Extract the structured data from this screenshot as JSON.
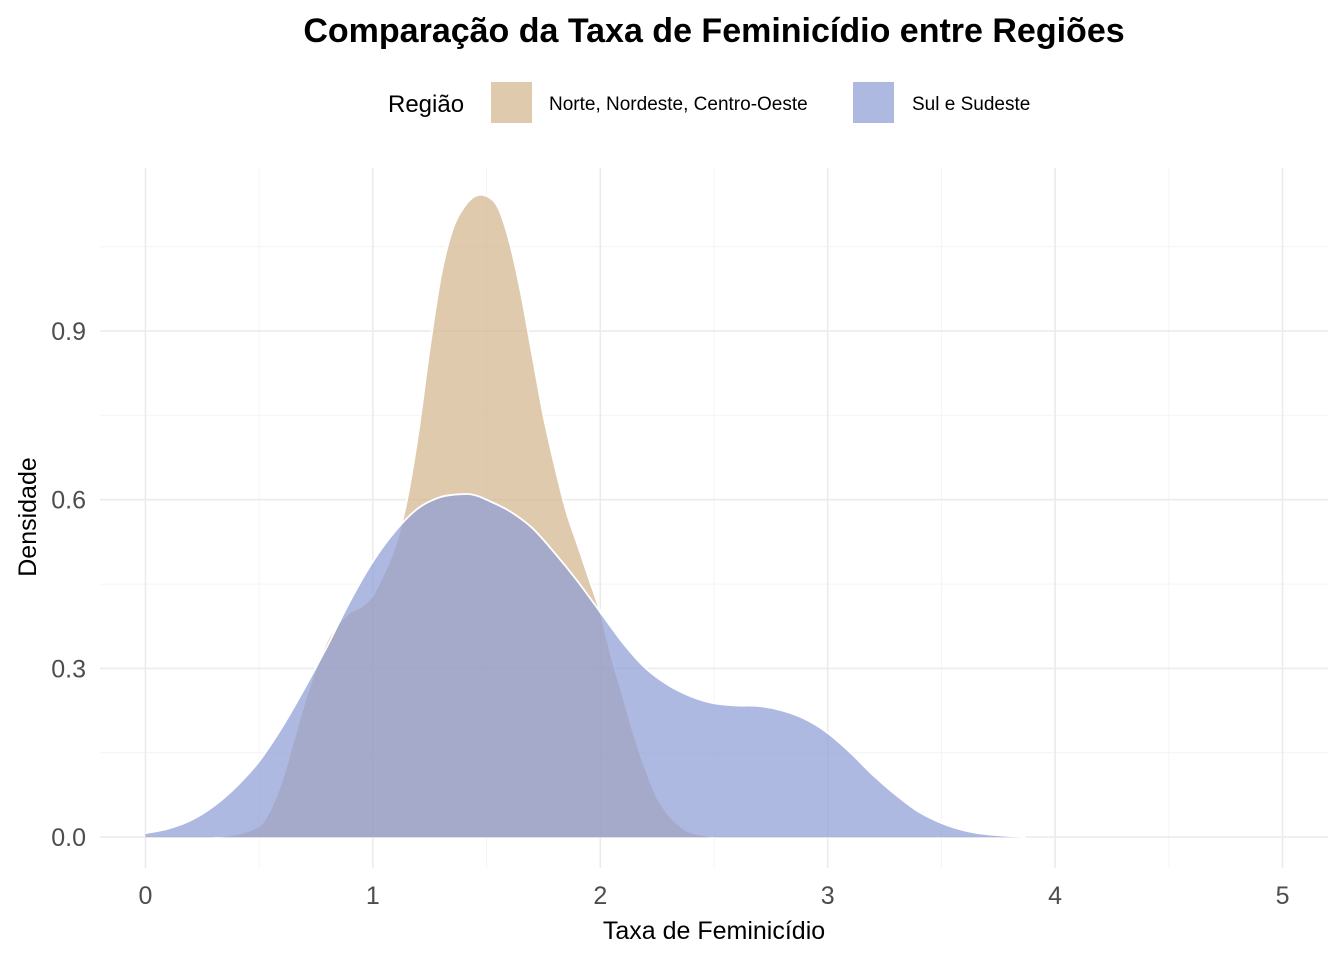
{
  "chart_data": {
    "type": "area",
    "subtype": "density",
    "title": "Comparação da Taxa de Feminicídio entre Regiões",
    "xlabel": "Taxa de Feminicídio",
    "ylabel": "Densidade",
    "xlim": [
      -0.2,
      5.2
    ],
    "ylim": [
      -0.055,
      1.19
    ],
    "x_ticks": [
      0,
      1,
      2,
      3,
      4,
      5
    ],
    "x_tick_labels": [
      "0",
      "1",
      "2",
      "3",
      "4",
      "5"
    ],
    "y_ticks": [
      0.0,
      0.3,
      0.6,
      0.9
    ],
    "y_tick_labels": [
      "0.0",
      "0.3",
      "0.6",
      "0.9"
    ],
    "grid": true,
    "legend": {
      "title": "Região",
      "position": "top"
    },
    "series": [
      {
        "name": "Norte, Nordeste, Centro-Oeste",
        "color": "#d2b48c",
        "x": [
          0.3,
          0.4,
          0.5,
          0.55,
          0.6,
          0.65,
          0.7,
          0.75,
          0.8,
          0.85,
          0.9,
          0.95,
          1.0,
          1.05,
          1.1,
          1.15,
          1.2,
          1.25,
          1.3,
          1.35,
          1.4,
          1.45,
          1.5,
          1.55,
          1.6,
          1.65,
          1.7,
          1.75,
          1.8,
          1.85,
          1.9,
          1.95,
          2.0,
          2.05,
          2.1,
          2.15,
          2.2,
          2.25,
          2.3,
          2.35,
          2.4,
          2.5
        ],
        "y": [
          0.0,
          0.005,
          0.02,
          0.05,
          0.1,
          0.17,
          0.24,
          0.3,
          0.35,
          0.38,
          0.4,
          0.41,
          0.43,
          0.47,
          0.52,
          0.6,
          0.72,
          0.87,
          1.0,
          1.08,
          1.12,
          1.14,
          1.14,
          1.12,
          1.06,
          0.97,
          0.86,
          0.75,
          0.66,
          0.58,
          0.52,
          0.46,
          0.4,
          0.32,
          0.25,
          0.18,
          0.12,
          0.07,
          0.04,
          0.02,
          0.008,
          0.0
        ]
      },
      {
        "name": "Sul e Sudeste",
        "color": "#8b9bd6",
        "x": [
          0.0,
          0.1,
          0.2,
          0.3,
          0.4,
          0.5,
          0.6,
          0.7,
          0.8,
          0.9,
          1.0,
          1.1,
          1.2,
          1.3,
          1.4,
          1.45,
          1.5,
          1.6,
          1.7,
          1.8,
          1.9,
          2.0,
          2.1,
          2.2,
          2.3,
          2.4,
          2.5,
          2.6,
          2.7,
          2.8,
          2.9,
          3.0,
          3.1,
          3.2,
          3.3,
          3.4,
          3.5,
          3.6,
          3.7,
          3.8,
          3.87
        ],
        "y": [
          0.007,
          0.015,
          0.03,
          0.055,
          0.09,
          0.135,
          0.195,
          0.265,
          0.34,
          0.42,
          0.49,
          0.545,
          0.585,
          0.605,
          0.61,
          0.608,
          0.6,
          0.58,
          0.55,
          0.505,
          0.455,
          0.4,
          0.345,
          0.3,
          0.27,
          0.25,
          0.238,
          0.234,
          0.233,
          0.225,
          0.21,
          0.185,
          0.15,
          0.11,
          0.075,
          0.045,
          0.025,
          0.012,
          0.005,
          0.002,
          0.0
        ]
      }
    ]
  }
}
